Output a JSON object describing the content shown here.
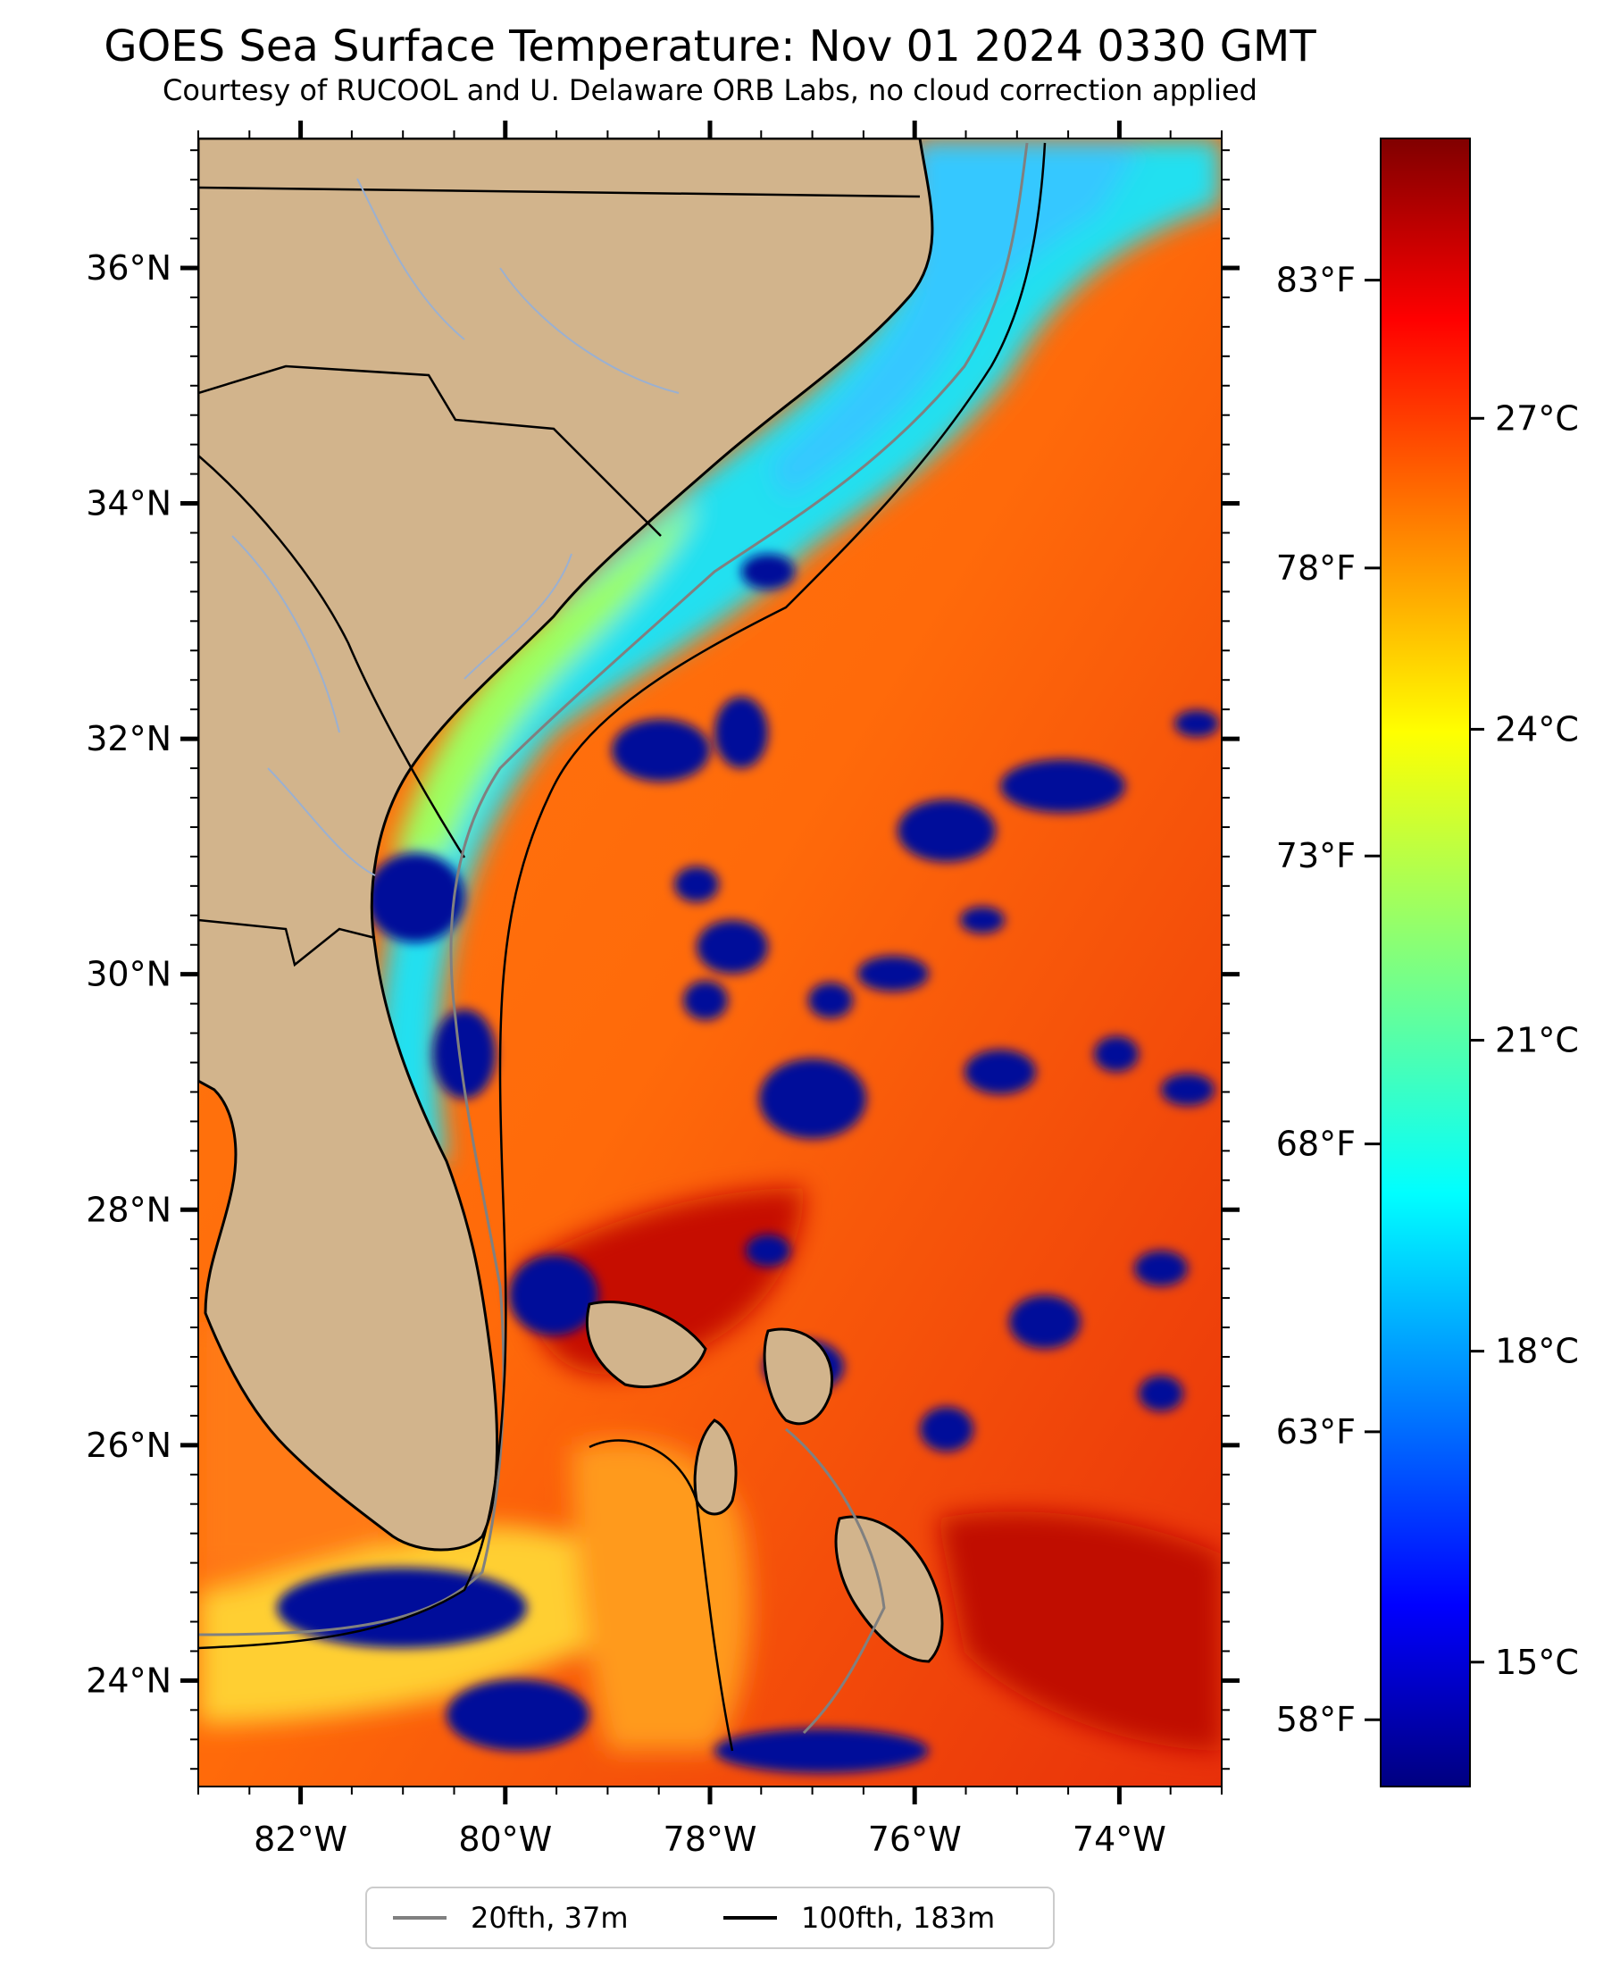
{
  "map": {
    "title": "GOES Sea Surface Temperature: Nov 01 2024 0330 GMT",
    "subtitle": "Courtesy of RUCOOL and U. Delaware ORB Labs, no cloud correction applied",
    "extent": {
      "lon_min": -83,
      "lon_max": -73,
      "lat_min": 23.1,
      "lat_max": 37.1
    },
    "lat_ticks": [
      "36°N",
      "34°N",
      "32°N",
      "30°N",
      "28°N",
      "26°N",
      "24°N"
    ],
    "lon_ticks": [
      "82°W",
      "80°W",
      "78°W",
      "76°W",
      "74°W"
    ],
    "fahrenheit_ticks": [
      "83°F",
      "78°F",
      "73°F",
      "68°F",
      "63°F",
      "58°F"
    ],
    "land_color": "#d2b48c",
    "colormap": "jet",
    "colorbar": {
      "tick_labels": [
        "27°C",
        "24°C",
        "21°C",
        "18°C",
        "15°C"
      ],
      "range_celsius": [
        13.8,
        29.7
      ]
    },
    "legend": {
      "entries": [
        {
          "label": "20fth, 37m",
          "color": "#808080"
        },
        {
          "label": "100fth, 183m",
          "color": "#000000"
        }
      ]
    }
  }
}
